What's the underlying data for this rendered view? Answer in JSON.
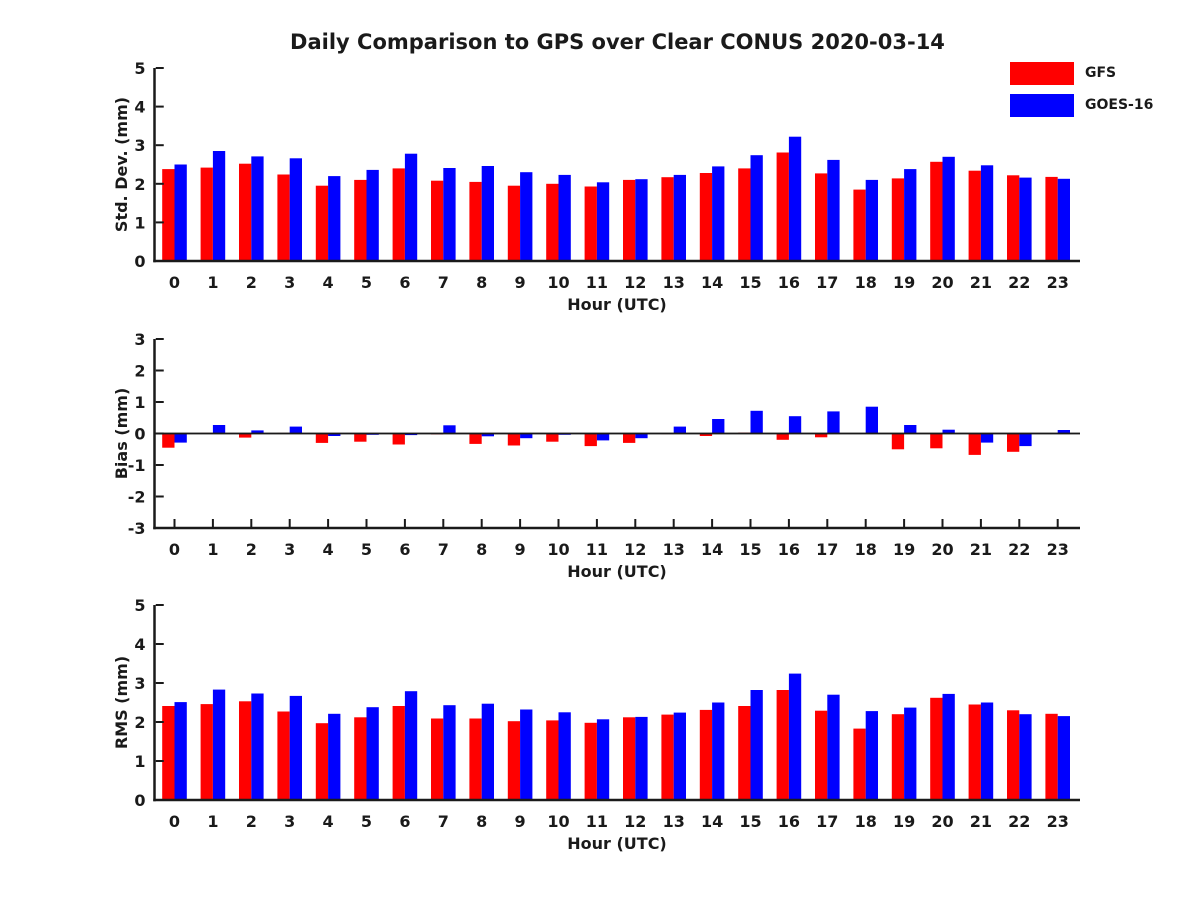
{
  "title": "Daily Comparison to GPS over Clear CONUS 2020-03-14",
  "legend": {
    "items": [
      {
        "label": "GFS",
        "color": "#FF0000"
      },
      {
        "label": "GOES-16",
        "color": "#0000FF"
      }
    ]
  },
  "colors": {
    "gfs": "#FF0000",
    "goes16": "#0000FF",
    "axis": "#1a1a1a",
    "background": "#FFFFFF"
  },
  "chart_data": [
    {
      "type": "bar",
      "ylabel": "Std. Dev. (mm)",
      "xlabel": "Hour (UTC)",
      "ylim": [
        0,
        5
      ],
      "yticks": [
        0,
        1,
        2,
        3,
        4,
        5
      ],
      "grid": false,
      "legend_position": "upper-right-outside",
      "categories": [
        "0",
        "1",
        "2",
        "3",
        "4",
        "5",
        "6",
        "7",
        "8",
        "9",
        "10",
        "11",
        "12",
        "13",
        "14",
        "15",
        "16",
        "17",
        "18",
        "19",
        "20",
        "21",
        "22",
        "23"
      ],
      "series": [
        {
          "name": "GFS",
          "color": "#FF0000",
          "values": [
            2.38,
            2.42,
            2.52,
            2.24,
            1.95,
            2.1,
            2.4,
            2.08,
            2.05,
            1.95,
            2.0,
            1.93,
            2.1,
            2.17,
            2.28,
            2.4,
            2.81,
            2.27,
            1.85,
            2.14,
            2.57,
            2.34,
            2.22,
            2.18
          ]
        },
        {
          "name": "GOES-16",
          "color": "#0000FF",
          "values": [
            2.5,
            2.85,
            2.71,
            2.66,
            2.2,
            2.36,
            2.78,
            2.41,
            2.46,
            2.3,
            2.23,
            2.04,
            2.12,
            2.23,
            2.45,
            2.74,
            3.22,
            2.62,
            2.1,
            2.38,
            2.7,
            2.48,
            2.16,
            2.13
          ]
        }
      ]
    },
    {
      "type": "bar",
      "ylabel": "Bias (mm)",
      "xlabel": "Hour (UTC)",
      "ylim": [
        -3,
        3
      ],
      "yticks": [
        3,
        2,
        1,
        0,
        -1,
        -2,
        -3
      ],
      "grid": false,
      "categories": [
        "0",
        "1",
        "2",
        "3",
        "4",
        "5",
        "6",
        "7",
        "8",
        "9",
        "10",
        "11",
        "12",
        "13",
        "14",
        "15",
        "16",
        "17",
        "18",
        "19",
        "20",
        "21",
        "22",
        "23"
      ],
      "series": [
        {
          "name": "GFS",
          "color": "#FF0000",
          "values": [
            -0.45,
            0.02,
            -0.13,
            0.02,
            -0.3,
            -0.26,
            -0.35,
            -0.03,
            -0.33,
            -0.38,
            -0.26,
            -0.4,
            -0.3,
            -0.02,
            -0.08,
            0.03,
            -0.2,
            -0.12,
            0.0,
            -0.5,
            -0.47,
            -0.68,
            -0.58,
            0.0
          ]
        },
        {
          "name": "GOES-16",
          "color": "#0000FF",
          "values": [
            -0.29,
            0.27,
            0.1,
            0.22,
            -0.08,
            -0.04,
            -0.05,
            0.26,
            -0.09,
            -0.15,
            -0.04,
            -0.22,
            -0.15,
            0.22,
            0.46,
            0.72,
            0.55,
            0.7,
            0.85,
            0.27,
            0.12,
            -0.29,
            -0.4,
            0.11
          ]
        }
      ]
    },
    {
      "type": "bar",
      "ylabel": "RMS (mm)",
      "xlabel": "Hour (UTC)",
      "ylim": [
        0,
        5
      ],
      "yticks": [
        0,
        1,
        2,
        3,
        4,
        5
      ],
      "grid": false,
      "categories": [
        "0",
        "1",
        "2",
        "3",
        "4",
        "5",
        "6",
        "7",
        "8",
        "9",
        "10",
        "11",
        "12",
        "13",
        "14",
        "15",
        "16",
        "17",
        "18",
        "19",
        "20",
        "21",
        "22",
        "23"
      ],
      "series": [
        {
          "name": "GFS",
          "color": "#FF0000",
          "values": [
            2.41,
            2.46,
            2.53,
            2.27,
            1.97,
            2.12,
            2.41,
            2.09,
            2.09,
            2.02,
            2.04,
            1.98,
            2.12,
            2.19,
            2.31,
            2.41,
            2.82,
            2.29,
            1.83,
            2.2,
            2.62,
            2.45,
            2.3,
            2.21
          ]
        },
        {
          "name": "GOES-16",
          "color": "#0000FF",
          "values": [
            2.51,
            2.83,
            2.73,
            2.67,
            2.21,
            2.38,
            2.79,
            2.43,
            2.47,
            2.32,
            2.25,
            2.07,
            2.13,
            2.24,
            2.5,
            2.82,
            3.24,
            2.7,
            2.28,
            2.37,
            2.72,
            2.5,
            2.2,
            2.15
          ]
        }
      ]
    }
  ]
}
